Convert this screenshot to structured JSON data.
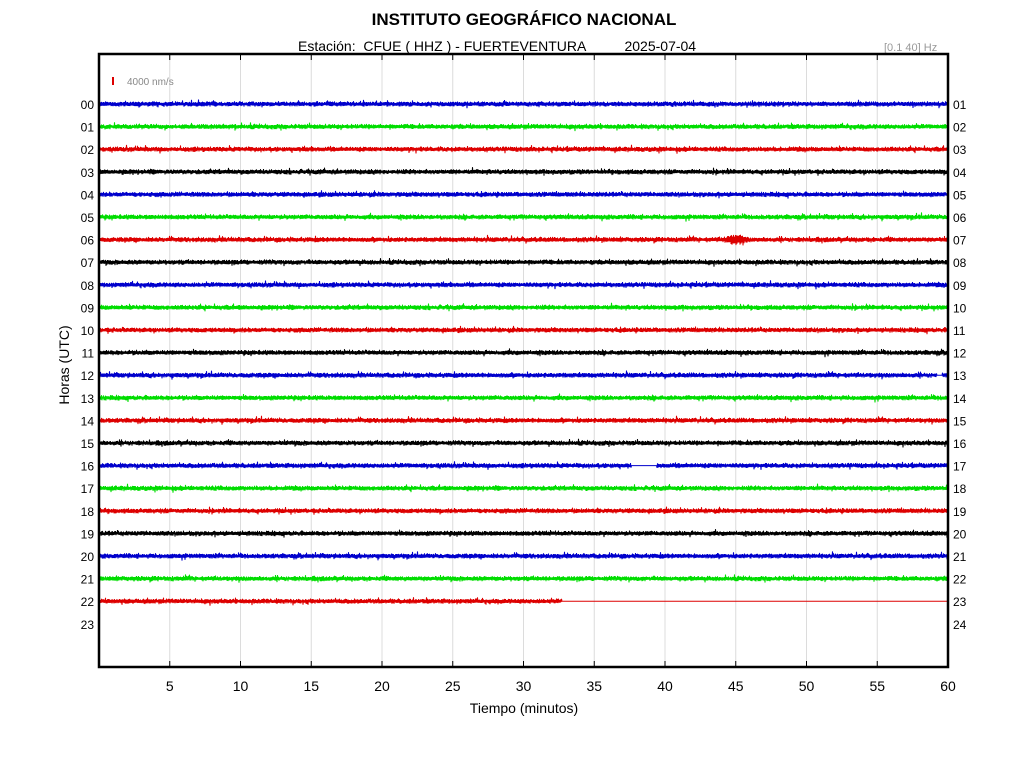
{
  "header": {
    "title": "INSTITUTO GEOGRÁFICO NACIONAL",
    "station_label": "Estación:",
    "station": "CFUE ( HHZ ) - FUERTEVENTURA",
    "date": "2025-07-04",
    "filter": "[0.1 40] Hz"
  },
  "scale_label": "4000 nm/s",
  "colors": {
    "cycle": [
      "#0000cc",
      "#00dd00",
      "#dd0000",
      "#000000"
    ],
    "scale": "#dd0000",
    "grid": "#dcdcdc",
    "frame": "#000000"
  },
  "chart_data": {
    "type": "line",
    "title": "INSTITUTO GEOGRÁFICO NACIONAL",
    "xlabel": "Tiempo (minutos)",
    "ylabel": "Horas (UTC)",
    "xlim": [
      0,
      60
    ],
    "x_ticks": [
      5,
      10,
      15,
      20,
      25,
      30,
      35,
      40,
      45,
      50,
      55,
      60
    ],
    "left_tick_labels": [
      "00",
      "01",
      "02",
      "03",
      "04",
      "05",
      "06",
      "07",
      "08",
      "09",
      "10",
      "11",
      "12",
      "13",
      "14",
      "15",
      "16",
      "17",
      "18",
      "19",
      "20",
      "21",
      "22",
      "23"
    ],
    "right_tick_labels": [
      "01",
      "02",
      "03",
      "04",
      "05",
      "06",
      "07",
      "08",
      "09",
      "10",
      "11",
      "12",
      "13",
      "14",
      "15",
      "16",
      "17",
      "18",
      "19",
      "20",
      "21",
      "22",
      "23",
      "24"
    ],
    "grid": true,
    "scale_bar_nm_s": 4000,
    "series": [
      {
        "hour": "00",
        "color": "blue",
        "data_end_min": 60
      },
      {
        "hour": "01",
        "color": "green",
        "data_end_min": 60
      },
      {
        "hour": "02",
        "color": "red",
        "data_end_min": 60
      },
      {
        "hour": "03",
        "color": "black",
        "data_end_min": 60
      },
      {
        "hour": "04",
        "color": "blue",
        "data_end_min": 60
      },
      {
        "hour": "05",
        "color": "green",
        "data_end_min": 60
      },
      {
        "hour": "06",
        "color": "red",
        "data_end_min": 60,
        "events_min": [
          45
        ]
      },
      {
        "hour": "07",
        "color": "black",
        "data_end_min": 60
      },
      {
        "hour": "08",
        "color": "blue",
        "data_end_min": 60
      },
      {
        "hour": "09",
        "color": "green",
        "data_end_min": 60
      },
      {
        "hour": "10",
        "color": "red",
        "data_end_min": 60
      },
      {
        "hour": "11",
        "color": "black",
        "data_end_min": 60
      },
      {
        "hour": "12",
        "color": "blue",
        "data_end_min": 60,
        "gaps_min": [
          [
            59.2,
            59.6
          ]
        ]
      },
      {
        "hour": "13",
        "color": "green",
        "data_end_min": 60
      },
      {
        "hour": "14",
        "color": "red",
        "data_end_min": 60
      },
      {
        "hour": "15",
        "color": "black",
        "data_end_min": 60
      },
      {
        "hour": "16",
        "color": "blue",
        "data_end_min": 60,
        "gaps_min": [
          [
            37.6,
            39.4
          ]
        ]
      },
      {
        "hour": "17",
        "color": "green",
        "data_end_min": 60
      },
      {
        "hour": "18",
        "color": "red",
        "data_end_min": 60
      },
      {
        "hour": "19",
        "color": "black",
        "data_end_min": 60
      },
      {
        "hour": "20",
        "color": "blue",
        "data_end_min": 60
      },
      {
        "hour": "21",
        "color": "green",
        "data_end_min": 60
      },
      {
        "hour": "22",
        "color": "red",
        "data_end_min": 32.7
      }
    ]
  }
}
